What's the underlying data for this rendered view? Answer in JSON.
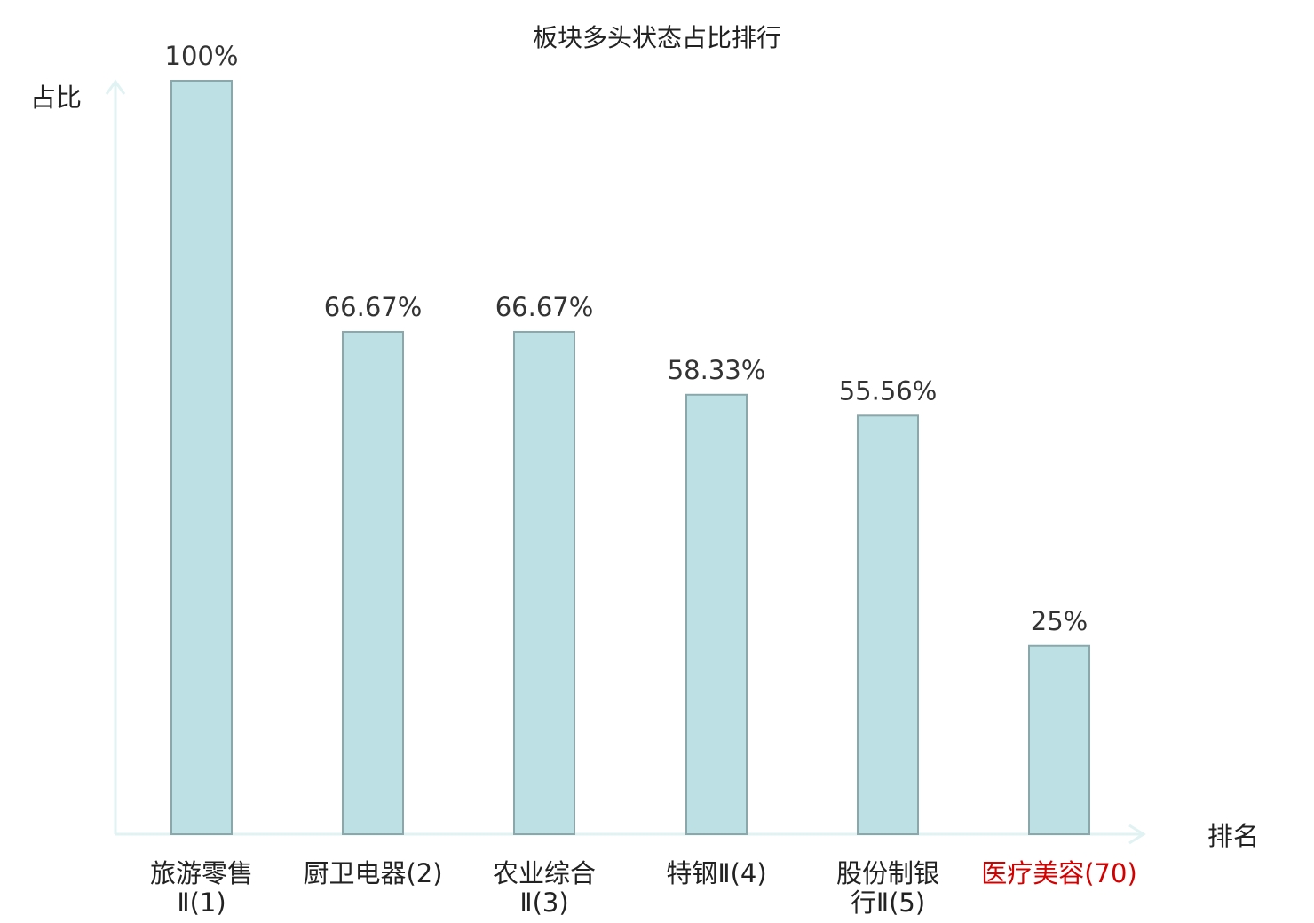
{
  "chart_data": {
    "type": "bar",
    "title": "板块多头状态占比排行",
    "ylabel": "占比",
    "xlabel": "排名",
    "ylim": [
      0,
      100
    ],
    "grid": false,
    "categories": [
      {
        "name": "旅游零售",
        "suffix": "Ⅱ(1)",
        "lines": [
          "旅游零售",
          "Ⅱ(1)"
        ],
        "highlight": false
      },
      {
        "name": "厨卫电器",
        "suffix": "(2)",
        "lines": [
          "厨卫电器(2)"
        ],
        "highlight": false
      },
      {
        "name": "农业综合",
        "suffix": "Ⅱ(3)",
        "lines": [
          "农业综合",
          "Ⅱ(3)"
        ],
        "highlight": false
      },
      {
        "name": "特钢",
        "suffix": "Ⅱ(4)",
        "lines": [
          "特钢Ⅱ(4)"
        ],
        "highlight": false
      },
      {
        "name": "股份制银",
        "suffix": "行Ⅱ(5)",
        "lines": [
          "股份制银",
          "行Ⅱ(5)"
        ],
        "highlight": false
      },
      {
        "name": "医疗美容",
        "suffix": "(70)",
        "lines": [
          "医疗美容(70)"
        ],
        "highlight": true
      }
    ],
    "values": [
      100,
      66.67,
      66.67,
      58.33,
      55.56,
      25
    ],
    "value_labels": [
      "100%",
      "66.67%",
      "66.67%",
      "58.33%",
      "55.56%",
      "25%"
    ]
  },
  "colors": {
    "bar_fill": "#bce0e3",
    "bar_stroke": "#8aa7ab",
    "axis": "#e0f2f1",
    "highlight": "#d40000"
  }
}
